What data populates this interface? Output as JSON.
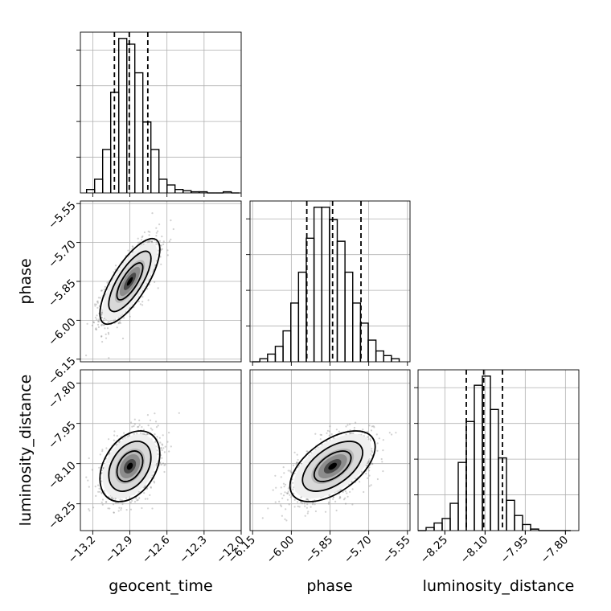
{
  "chart_data": {
    "type": "corner",
    "parameters": [
      "geocent_time",
      "phase",
      "luminosity_distance"
    ],
    "grid": true,
    "axes": {
      "geocent_time": {
        "range": [
          -13.3,
          -12.0
        ],
        "ticks": [
          -13.2,
          -12.9,
          -12.6,
          -12.3,
          -12.0
        ],
        "tick_labels": [
          "−13.2",
          "−12.9",
          "−12.6",
          "−12.3",
          "−12.0"
        ]
      },
      "phase": {
        "range": [
          -6.16,
          -5.54
        ],
        "ticks": [
          -6.15,
          -6.0,
          -5.85,
          -5.7,
          -5.55
        ],
        "tick_labels": [
          "−6.15",
          "−6.00",
          "−5.85",
          "−5.70",
          "−5.55"
        ]
      },
      "luminosity_distance": {
        "range": [
          -8.35,
          -7.75
        ],
        "ticks": [
          -8.25,
          -8.1,
          -7.95,
          -7.8
        ],
        "tick_labels": [
          "−8.25",
          "−8.10",
          "−7.95",
          "−7.80"
        ]
      }
    },
    "histograms": {
      "geocent_time": {
        "bin_edges": [
          -13.25,
          -13.185,
          -13.12,
          -13.055,
          -12.99,
          -12.925,
          -12.86,
          -12.795,
          -12.73,
          -12.665,
          -12.6,
          -12.535,
          -12.47,
          -12.405,
          -12.34,
          -12.275,
          -12.21,
          -12.145,
          -12.08,
          -12.015
        ],
        "counts": [
          3,
          12,
          38,
          88,
          135,
          130,
          105,
          62,
          38,
          12,
          7,
          3,
          2,
          1,
          1,
          0,
          0,
          1,
          0
        ],
        "quantiles": [
          -13.025,
          -12.905,
          -12.755
        ]
      },
      "phase": {
        "bin_edges": [
          -6.152,
          -6.122,
          -6.092,
          -6.062,
          -6.032,
          -6.002,
          -5.972,
          -5.942,
          -5.912,
          -5.882,
          -5.852,
          -5.822,
          -5.792,
          -5.762,
          -5.732,
          -5.702,
          -5.672,
          -5.642,
          -5.612,
          -5.582
        ],
        "counts": [
          0,
          2,
          5,
          10,
          20,
          38,
          58,
          80,
          100,
          100,
          92,
          78,
          58,
          38,
          25,
          14,
          7,
          4,
          2
        ],
        "quantiles": [
          -5.94,
          -5.84,
          -5.73
        ]
      },
      "luminosity_distance": {
        "bin_edges": [
          -8.35,
          -8.32,
          -8.29,
          -8.26,
          -8.23,
          -8.2,
          -8.17,
          -8.14,
          -8.11,
          -8.08,
          -8.05,
          -8.02,
          -7.99,
          -7.96,
          -7.93,
          -7.9,
          -7.87,
          -7.84,
          -7.81,
          -7.78
        ],
        "counts": [
          0,
          2,
          5,
          8,
          18,
          45,
          72,
          96,
          102,
          80,
          48,
          20,
          10,
          4,
          1,
          0,
          0,
          0,
          0
        ],
        "quantiles": [
          -8.17,
          -8.105,
          -8.035
        ]
      }
    },
    "pairs": [
      {
        "x": "geocent_time",
        "y": "phase",
        "center": [
          -12.9,
          -5.85
        ],
        "sd": [
          0.11,
          0.075
        ],
        "corr": 0.75
      },
      {
        "x": "geocent_time",
        "y": "luminosity_distance",
        "center": [
          -12.9,
          -8.11
        ],
        "sd": [
          0.11,
          0.06
        ],
        "corr": 0.35
      },
      {
        "x": "phase",
        "y": "luminosity_distance",
        "center": [
          -5.84,
          -8.11
        ],
        "sd": [
          0.075,
          0.06
        ],
        "corr": 0.55
      }
    ]
  }
}
